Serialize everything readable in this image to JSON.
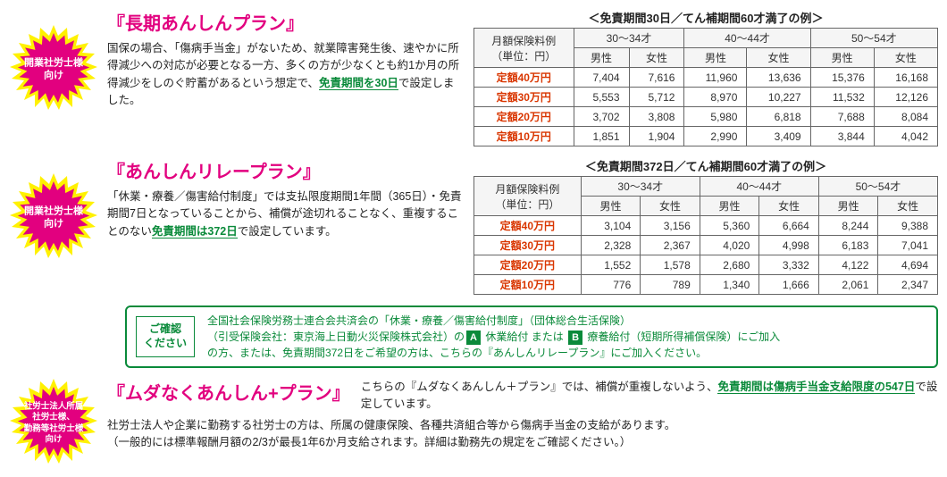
{
  "colors": {
    "badge_pink": "#e2007f",
    "badge_yellow": "#fff100",
    "title_pink": "#e2007f",
    "green": "#0a8a3a",
    "row_label": "#d93600"
  },
  "plan1": {
    "badge_text": "開業社労士様\n向け",
    "title": "『長期あんしんプラン』",
    "desc_before": "国保の場合、「傷病手当金」がないため、就業障害発生後、速やかに所得減少への対応が必要となる一方、多くの方が少なくとも約1か月の所得減少をしのぐ貯蓄があるという想定で、",
    "desc_underline": "免責期間を30日",
    "desc_after": "で設定しました。",
    "table_caption": "＜免責期間30日／てん補期間60才満了の例＞",
    "col_header_main": "月額保険料例\n（単位：円）",
    "age_groups": [
      "30～34才",
      "40～44才",
      "50～54才"
    ],
    "genders": [
      "男性",
      "女性"
    ],
    "rows": [
      {
        "label": "定額40万円",
        "values": [
          "7,404",
          "7,616",
          "11,960",
          "13,636",
          "15,376",
          "16,168"
        ]
      },
      {
        "label": "定額30万円",
        "values": [
          "5,553",
          "5,712",
          "8,970",
          "10,227",
          "11,532",
          "12,126"
        ]
      },
      {
        "label": "定額20万円",
        "values": [
          "3,702",
          "3,808",
          "5,980",
          "6,818",
          "7,688",
          "8,084"
        ]
      },
      {
        "label": "定額10万円",
        "values": [
          "1,851",
          "1,904",
          "2,990",
          "3,409",
          "3,844",
          "4,042"
        ]
      }
    ]
  },
  "plan2": {
    "badge_text": "開業社労士様\n向け",
    "title": "『あんしんリレープラン』",
    "desc_before": "「休業・療養／傷害給付制度」では支払限度期間1年間（365日）・免責期間7日となっていることから、補償が途切れることなく、重複することのない",
    "desc_underline": "免責期間は372日",
    "desc_after": "で設定しています。",
    "table_caption": "＜免責期間372日／てん補期間60才満了の例＞",
    "col_header_main": "月額保険料例\n（単位：円）",
    "age_groups": [
      "30～34才",
      "40～44才",
      "50～54才"
    ],
    "genders": [
      "男性",
      "女性"
    ],
    "rows": [
      {
        "label": "定額40万円",
        "values": [
          "3,104",
          "3,156",
          "5,360",
          "6,664",
          "8,244",
          "9,388"
        ]
      },
      {
        "label": "定額30万円",
        "values": [
          "2,328",
          "2,367",
          "4,020",
          "4,998",
          "6,183",
          "7,041"
        ]
      },
      {
        "label": "定額20万円",
        "values": [
          "1,552",
          "1,578",
          "2,680",
          "3,332",
          "4,122",
          "4,694"
        ]
      },
      {
        "label": "定額10万円",
        "values": [
          "776",
          "789",
          "1,340",
          "1,666",
          "2,061",
          "2,347"
        ]
      }
    ]
  },
  "notice": {
    "label": "ご確認\nください",
    "line1": "全国社会保険労務士連合会共済会の「休業・療養／傷害給付制度」（団体総合生活保険）",
    "line2_before": "（引受保険会社：東京海上日動火災保険株式会社）の",
    "box_a": "A",
    "line2_mid1": " 休業給付 または ",
    "box_b": "B",
    "line2_mid2": " 療養給付（短期所得補償保険）にご加入",
    "line3": "の方、または、免責期間372日をご希望の方は、こちらの『あんしんリレープラン』にご加入ください。"
  },
  "plan3": {
    "badge_text": "社労士法人所属\n社労士様、\n勤務等社労士様\n向け",
    "title": "『ムダなくあんしん+プラン』",
    "desc_before": "こちらの『ムダなくあんしん＋プラン』では、補償が重複しないよう、",
    "desc_underline": "免責期間は傷病手当金支給限度の547日",
    "desc_after": "で設定しています。",
    "note_line1": "社労士法人や企業に勤務する社労士の方は、所属の健康保険、各種共済組合等から傷病手当金の支給があります。",
    "note_line2": "（一般的には標準報酬月額の2/3が最長1年6か月支給されます。詳細は勤務先の規定をご確認ください。）"
  }
}
